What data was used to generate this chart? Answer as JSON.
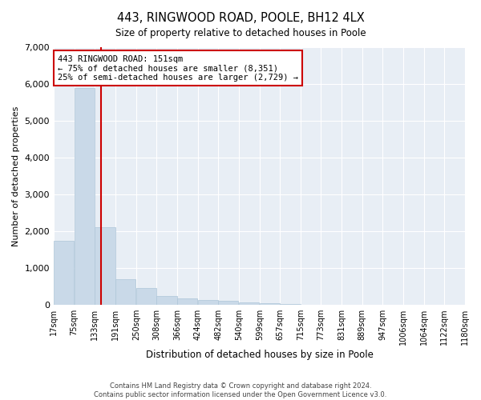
{
  "title": "443, RINGWOOD ROAD, POOLE, BH12 4LX",
  "subtitle": "Size of property relative to detached houses in Poole",
  "xlabel": "Distribution of detached houses by size in Poole",
  "ylabel": "Number of detached properties",
  "bar_color": "#c9d9e8",
  "bar_edge_color": "#aec6d8",
  "background_color": "#ffffff",
  "plot_bg_color": "#e8eef5",
  "grid_color": "#ffffff",
  "red_line_color": "#cc0000",
  "annotation_box_color": "#cc0000",
  "bins": [
    17,
    75,
    133,
    191,
    250,
    308,
    366,
    424,
    482,
    540,
    599,
    657,
    715,
    773,
    831,
    889,
    947,
    1006,
    1064,
    1122,
    1180
  ],
  "bin_labels": [
    "17sqm",
    "75sqm",
    "133sqm",
    "191sqm",
    "250sqm",
    "308sqm",
    "366sqm",
    "424sqm",
    "482sqm",
    "540sqm",
    "599sqm",
    "657sqm",
    "715sqm",
    "773sqm",
    "831sqm",
    "889sqm",
    "947sqm",
    "1006sqm",
    "1064sqm",
    "1122sqm",
    "1180sqm"
  ],
  "counts": [
    1750,
    5900,
    2100,
    700,
    450,
    250,
    180,
    130,
    110,
    70,
    50,
    20,
    0,
    0,
    0,
    0,
    0,
    0,
    0,
    0
  ],
  "red_line_x": 151,
  "annotation_text_line1": "443 RINGWOOD ROAD: 151sqm",
  "annotation_text_line2": "← 75% of detached houses are smaller (8,351)",
  "annotation_text_line3": "25% of semi-detached houses are larger (2,729) →",
  "ylim": [
    0,
    7000
  ],
  "yticks": [
    0,
    1000,
    2000,
    3000,
    4000,
    5000,
    6000,
    7000
  ],
  "footer_line1": "Contains HM Land Registry data © Crown copyright and database right 2024.",
  "footer_line2": "Contains public sector information licensed under the Open Government Licence v3.0."
}
